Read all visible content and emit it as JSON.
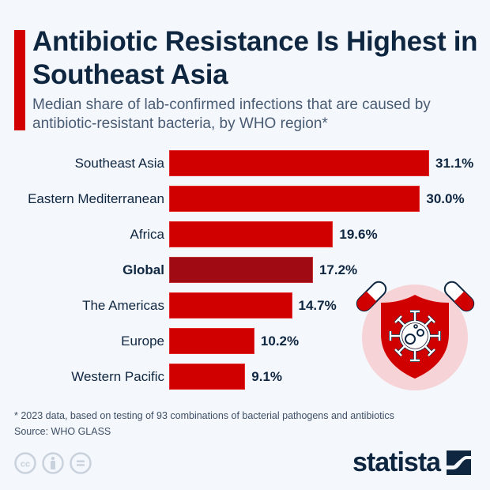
{
  "header": {
    "title": "Antibiotic Resistance Is Highest in Southeast Asia",
    "subtitle": "Median share of lab-confirmed infections that are caused by antibiotic-resistant bacteria, by WHO region*"
  },
  "chart_data": {
    "type": "bar",
    "orientation": "horizontal",
    "title": "Antibiotic Resistance Is Highest in Southeast Asia",
    "subtitle": "Median share of lab-confirmed infections that are caused by antibiotic-resistant bacteria, by WHO region*",
    "xlabel": "",
    "ylabel": "",
    "unit": "%",
    "categories": [
      "Southeast Asia",
      "Eastern Mediterranean",
      "Africa",
      "Global",
      "The Americas",
      "Europe",
      "Western Pacific"
    ],
    "values": [
      31.1,
      30.0,
      19.6,
      17.2,
      14.7,
      10.2,
      9.1
    ],
    "value_labels": [
      "31.1%",
      "30.0%",
      "19.6%",
      "17.2%",
      "14.7%",
      "10.2%",
      "9.1%"
    ],
    "highlight": "Global",
    "colors": {
      "bar": "#d00000",
      "highlight_bar": "#a00a12"
    },
    "grid": false,
    "legend": null
  },
  "colors": {
    "accent": "#d20000",
    "title": "#0f2641",
    "background": "#f4f7fb",
    "illustration_circle": "#f6d3d6"
  },
  "footer": {
    "note": "* 2023 data, based on testing of 93 combinations of bacterial pathogens and antibiotics",
    "source": "Source: WHO GLASS",
    "license_icons": [
      "cc-icon",
      "attribution-icon",
      "no-derivatives-icon"
    ],
    "brand": "statista"
  }
}
